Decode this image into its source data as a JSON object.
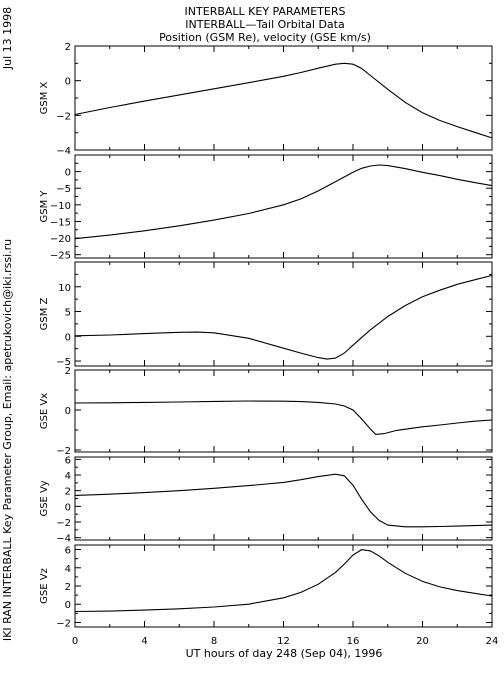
{
  "header": {
    "title": "INTERBALL KEY PARAMETERS",
    "subtitle": "INTERBALL—Tail Orbital Data",
    "subtitle2": "Position (GSM Re), velocity (GSE km/s)"
  },
  "side_date": "Jul 13 1998",
  "side_credit": "IKI RAN INTERBALL Key Parameter Group, Email: apetrukovich@iki.rssi.ru",
  "chart_data": {
    "type": "line",
    "xlabel": "UT hours of day 248 (Sep 04), 1996",
    "xlim": [
      0,
      24
    ],
    "x_ticks": [
      "0",
      "4",
      "8",
      "12",
      "16",
      "20",
      "24"
    ],
    "panels": [
      {
        "ylabel": "GSM X",
        "ylim": [
          -4,
          2
        ],
        "y_ticks": [
          "2",
          "0",
          "−2",
          "−4"
        ],
        "x": [
          0,
          2,
          4,
          6,
          8,
          10,
          12,
          13,
          14,
          15,
          15.5,
          16,
          16.5,
          17,
          18,
          19,
          20,
          21,
          22,
          23,
          24
        ],
        "y": [
          -1.95,
          -1.55,
          -1.18,
          -0.82,
          -0.47,
          -0.12,
          0.25,
          0.47,
          0.72,
          0.95,
          1.0,
          0.95,
          0.7,
          0.3,
          -0.5,
          -1.25,
          -1.85,
          -2.3,
          -2.65,
          -2.98,
          -3.3
        ]
      },
      {
        "ylabel": "GSM Y",
        "ylim": [
          -26,
          5
        ],
        "y_ticks": [
          "0",
          "−5",
          "−10",
          "−15",
          "−20",
          "−25"
        ],
        "x": [
          0,
          2,
          4,
          6,
          8,
          10,
          12,
          13,
          14,
          15,
          16,
          16.5,
          17,
          17.5,
          18,
          19,
          20,
          21,
          22,
          23,
          24
        ],
        "y": [
          -20.2,
          -19.1,
          -17.8,
          -16.3,
          -14.6,
          -12.6,
          -10.0,
          -8.2,
          -5.8,
          -3.0,
          -0.2,
          1.0,
          1.7,
          2.0,
          1.8,
          0.9,
          -0.2,
          -1.2,
          -2.3,
          -3.3,
          -4.2
        ]
      },
      {
        "ylabel": "GSM Z",
        "ylim": [
          -6,
          15
        ],
        "y_ticks": [
          "10",
          "5",
          "0",
          "−5"
        ],
        "x": [
          0,
          2,
          4,
          6,
          7,
          8,
          10,
          12,
          13,
          14,
          14.5,
          15,
          15.5,
          16,
          17,
          18,
          19,
          20,
          21,
          22,
          23,
          24
        ],
        "y": [
          0.1,
          0.25,
          0.55,
          0.8,
          0.85,
          0.7,
          -0.4,
          -2.4,
          -3.4,
          -4.3,
          -4.6,
          -4.4,
          -3.4,
          -1.8,
          1.3,
          4.0,
          6.2,
          8.0,
          9.3,
          10.5,
          11.4,
          12.3
        ]
      },
      {
        "ylabel": "GSE Vx",
        "ylim": [
          -2.1,
          2
        ],
        "y_ticks": [
          "2",
          "0",
          "−2"
        ],
        "x": [
          0,
          2,
          4,
          6,
          8,
          10,
          12,
          13,
          14,
          15,
          15.5,
          16,
          16.5,
          17,
          17.3,
          17.8,
          18.5,
          20,
          21,
          22,
          23,
          24
        ],
        "y": [
          0.35,
          0.36,
          0.38,
          0.4,
          0.43,
          0.45,
          0.44,
          0.42,
          0.38,
          0.3,
          0.2,
          0.0,
          -0.45,
          -0.95,
          -1.22,
          -1.18,
          -1.02,
          -0.84,
          -0.75,
          -0.65,
          -0.56,
          -0.5
        ]
      },
      {
        "ylabel": "GSE Vy",
        "ylim": [
          -4.3,
          6.3
        ],
        "y_ticks": [
          "6",
          "4",
          "2",
          "0",
          "−2",
          "−4"
        ],
        "x": [
          0,
          2,
          4,
          6,
          8,
          10,
          12,
          13,
          14,
          15,
          15.5,
          16,
          16.5,
          17,
          17.5,
          18,
          19,
          20,
          21,
          22,
          23,
          24
        ],
        "y": [
          1.4,
          1.55,
          1.75,
          2.0,
          2.3,
          2.65,
          3.05,
          3.4,
          3.8,
          4.1,
          3.9,
          2.7,
          0.9,
          -0.7,
          -1.8,
          -2.4,
          -2.62,
          -2.62,
          -2.58,
          -2.52,
          -2.46,
          -2.4
        ]
      },
      {
        "ylabel": "GSE Vz",
        "ylim": [
          -2.5,
          6.5
        ],
        "y_ticks": [
          "6",
          "4",
          "2",
          "0",
          "−2"
        ],
        "x": [
          0,
          2,
          4,
          6,
          8,
          10,
          12,
          13,
          14,
          15,
          15.5,
          16,
          16.5,
          17,
          17.5,
          18,
          19,
          20,
          21,
          22,
          23,
          24
        ],
        "y": [
          -0.8,
          -0.75,
          -0.65,
          -0.5,
          -0.3,
          0.0,
          0.7,
          1.3,
          2.2,
          3.5,
          4.4,
          5.4,
          6.0,
          5.85,
          5.3,
          4.6,
          3.4,
          2.5,
          1.9,
          1.5,
          1.2,
          0.9
        ]
      }
    ]
  }
}
